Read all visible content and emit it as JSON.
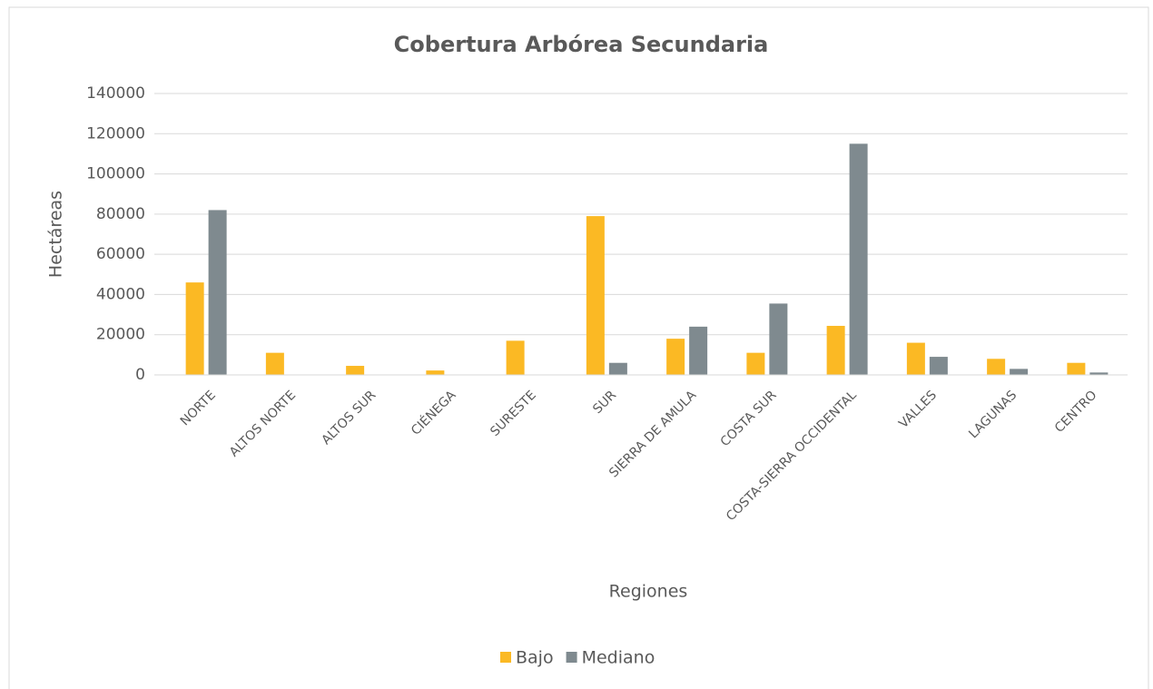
{
  "chart_data": {
    "type": "bar",
    "title": "Cobertura Arbórea Secundaria",
    "x_label": "Regiones",
    "y_label": "Hectáreas",
    "categories": [
      "NORTE",
      "ALTOS NORTE",
      "ALTOS SUR",
      "CIÉNEGA",
      "SURESTE",
      "SUR",
      "SIERRA DE AMULA",
      "COSTA SUR",
      "COSTA-SIERRA OCCIDENTAL",
      "VALLES",
      "LAGUNAS",
      "CENTRO"
    ],
    "series": [
      {
        "name": "Bajo",
        "color": "#fbb924",
        "values": [
          46000,
          11000,
          4500,
          2200,
          17000,
          79000,
          18000,
          11000,
          24400,
          16000,
          8000,
          6000
        ]
      },
      {
        "name": "Mediano",
        "color": "#7f8a8f",
        "values": [
          82000,
          0,
          0,
          0,
          0,
          6000,
          24000,
          35500,
          115000,
          9000,
          3000,
          1200
        ]
      }
    ],
    "ylim": [
      0,
      140000
    ],
    "yticks": [
      0,
      20000,
      40000,
      60000,
      80000,
      100000,
      120000,
      140000
    ],
    "grid": true,
    "legend": "bottom"
  }
}
